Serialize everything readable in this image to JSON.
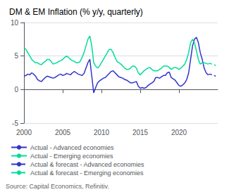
{
  "chart_data": {
    "type": "line",
    "title": "DM & EM Inflation (% y/y, quarterly)",
    "source": "Source: Capital Economics, Refinitiv.",
    "xlim": [
      2000,
      2025
    ],
    "ylim": [
      -5,
      10
    ],
    "xticks": [
      2000,
      2005,
      2010,
      2015,
      2020
    ],
    "yticks": [
      -5,
      0,
      5,
      10
    ],
    "grid": true,
    "legend": "bottom",
    "series": [
      {
        "name": "Actual - Advanced economies",
        "color": "#3333cc",
        "line_style": "solid",
        "x": [
          2000.0,
          2000.25,
          2000.5,
          2000.75,
          2001.0,
          2001.25,
          2001.5,
          2001.75,
          2002.0,
          2002.25,
          2002.5,
          2002.75,
          2003.0,
          2003.25,
          2003.5,
          2003.75,
          2004.0,
          2004.25,
          2004.5,
          2004.75,
          2005.0,
          2005.25,
          2005.5,
          2005.75,
          2006.0,
          2006.25,
          2006.5,
          2006.75,
          2007.0,
          2007.25,
          2007.5,
          2007.75,
          2008.0,
          2008.25,
          2008.5,
          2008.75,
          2009.0,
          2009.25,
          2009.5,
          2009.75,
          2010.0,
          2010.25,
          2010.5,
          2010.75,
          2011.0,
          2011.25,
          2011.5,
          2011.75,
          2012.0,
          2012.25,
          2012.5,
          2012.75,
          2013.0,
          2013.25,
          2013.5,
          2013.75,
          2014.0,
          2014.25,
          2014.5,
          2014.75,
          2015.0,
          2015.25,
          2015.5,
          2015.75,
          2016.0,
          2016.25,
          2016.5,
          2016.75,
          2017.0,
          2017.25,
          2017.5,
          2017.75,
          2018.0,
          2018.25,
          2018.5,
          2018.75,
          2019.0,
          2019.25,
          2019.5,
          2019.75,
          2020.0,
          2020.25,
          2020.5,
          2020.75,
          2021.0,
          2021.25,
          2021.5,
          2021.75,
          2022.0,
          2022.25,
          2022.5,
          2022.75,
          2023.0,
          2023.25,
          2023.5,
          2023.75
        ],
        "values": [
          2.0,
          2.1,
          2.3,
          2.2,
          2.5,
          2.3,
          2.0,
          1.5,
          1.3,
          1.2,
          1.5,
          1.8,
          2.0,
          1.9,
          1.8,
          1.7,
          1.8,
          2.0,
          2.2,
          2.3,
          2.1,
          2.2,
          2.4,
          2.3,
          2.2,
          2.5,
          2.7,
          2.5,
          2.3,
          2.2,
          2.1,
          2.4,
          3.2,
          4.0,
          4.5,
          2.0,
          -0.5,
          0.3,
          1.0,
          1.3,
          1.5,
          1.7,
          1.8,
          2.1,
          2.4,
          2.7,
          2.8,
          2.5,
          2.2,
          1.9,
          1.8,
          1.7,
          1.5,
          1.4,
          1.2,
          1.0,
          1.0,
          1.1,
          1.2,
          0.5,
          0.2,
          0.3,
          0.2,
          0.3,
          0.6,
          0.8,
          1.0,
          1.2,
          1.8,
          1.8,
          1.7,
          1.9,
          2.1,
          2.1,
          2.5,
          2.6,
          1.8,
          1.6,
          1.4,
          1.0,
          0.6,
          0.5,
          0.7,
          1.0,
          1.5,
          2.5,
          4.5,
          6.5,
          7.5,
          7.8,
          7.0,
          5.5,
          4.5,
          3.2,
          2.5,
          2.2
        ]
      },
      {
        "name": "Actual - Emerging economies",
        "color": "#00dd99",
        "line_style": "solid",
        "x": [
          2000.0,
          2000.25,
          2000.5,
          2000.75,
          2001.0,
          2001.25,
          2001.5,
          2001.75,
          2002.0,
          2002.25,
          2002.5,
          2002.75,
          2003.0,
          2003.25,
          2003.5,
          2003.75,
          2004.0,
          2004.25,
          2004.5,
          2004.75,
          2005.0,
          2005.25,
          2005.5,
          2005.75,
          2006.0,
          2006.25,
          2006.5,
          2006.75,
          2007.0,
          2007.25,
          2007.5,
          2007.75,
          2008.0,
          2008.25,
          2008.5,
          2008.75,
          2009.0,
          2009.25,
          2009.5,
          2009.75,
          2010.0,
          2010.25,
          2010.5,
          2010.75,
          2011.0,
          2011.25,
          2011.5,
          2011.75,
          2012.0,
          2012.25,
          2012.5,
          2012.75,
          2013.0,
          2013.25,
          2013.5,
          2013.75,
          2014.0,
          2014.25,
          2014.5,
          2014.75,
          2015.0,
          2015.25,
          2015.5,
          2015.75,
          2016.0,
          2016.25,
          2016.5,
          2016.75,
          2017.0,
          2017.25,
          2017.5,
          2017.75,
          2018.0,
          2018.25,
          2018.5,
          2018.75,
          2019.0,
          2019.25,
          2019.5,
          2019.75,
          2020.0,
          2020.25,
          2020.5,
          2020.75,
          2021.0,
          2021.25,
          2021.5,
          2021.75,
          2022.0,
          2022.25,
          2022.5,
          2022.75,
          2023.0,
          2023.25,
          2023.5,
          2023.75
        ],
        "values": [
          6.2,
          6.0,
          5.5,
          5.0,
          4.5,
          4.2,
          4.0,
          4.0,
          3.8,
          3.7,
          4.0,
          4.2,
          4.5,
          4.5,
          4.2,
          3.8,
          3.9,
          4.0,
          4.2,
          4.3,
          4.5,
          4.8,
          5.0,
          4.8,
          4.5,
          4.3,
          4.2,
          4.0,
          4.0,
          4.2,
          4.8,
          5.5,
          6.5,
          7.5,
          8.0,
          6.5,
          4.0,
          3.5,
          3.2,
          3.5,
          4.0,
          4.5,
          5.0,
          5.5,
          6.0,
          6.0,
          5.5,
          4.8,
          4.2,
          4.0,
          3.8,
          3.5,
          3.2,
          3.0,
          3.0,
          3.2,
          3.5,
          3.5,
          3.2,
          2.5,
          2.2,
          2.5,
          2.8,
          3.0,
          3.2,
          3.3,
          3.0,
          2.8,
          2.8,
          2.8,
          3.0,
          3.2,
          3.5,
          3.5,
          3.5,
          3.3,
          3.0,
          3.2,
          3.3,
          3.2,
          3.0,
          3.2,
          3.5,
          3.8,
          4.5,
          5.5,
          7.0,
          7.5,
          7.0,
          5.8,
          4.5,
          3.8,
          4.0,
          4.0,
          3.9,
          3.8
        ]
      },
      {
        "name": "Actual & forecast - Advanced economies",
        "color": "#3333cc",
        "line_style": "dashed",
        "x": [
          2023.75,
          2024.0,
          2024.25,
          2024.5,
          2024.75
        ],
        "values": [
          2.2,
          2.3,
          2.2,
          2.1,
          2.0
        ]
      },
      {
        "name": "Actual & forecast - Emerging economies",
        "color": "#00dd99",
        "line_style": "dashed",
        "x": [
          2023.75,
          2024.0,
          2024.25,
          2024.5,
          2024.75
        ],
        "values": [
          3.8,
          3.9,
          3.8,
          3.7,
          3.6
        ]
      }
    ]
  }
}
